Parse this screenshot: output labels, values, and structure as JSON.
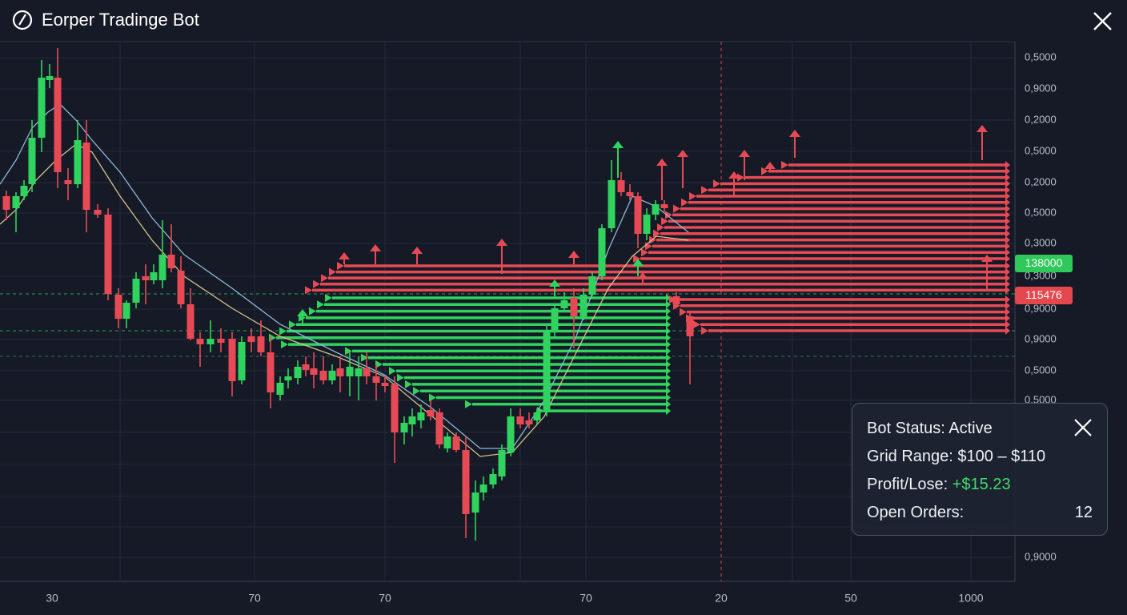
{
  "header": {
    "title": "Eorper Tradinge Bot"
  },
  "chart": {
    "y_labels": [
      "0,5000",
      "0,9000",
      "0,2000",
      "0,5000",
      "0,2000",
      "0,5000",
      "0,3000",
      "0,3000",
      "0,9000",
      "0,9000",
      "0,5000",
      "0,5000",
      "0,9000"
    ],
    "x_labels": [
      "30",
      "70",
      "70",
      "70",
      "20",
      "50",
      "1000"
    ],
    "price_tags": [
      {
        "value": 138000,
        "color": "#2fc85a"
      },
      {
        "value": 115476,
        "color": "#e5474f"
      }
    ]
  },
  "status_panel": {
    "status": "Bot Status: Active",
    "grid_range": "Grid Range: $100 – $110",
    "profit_label": "Profit/Lose:",
    "profit_value": "+$15.23",
    "open_orders_label": "Open Orders:",
    "open_orders_value": 12
  }
}
